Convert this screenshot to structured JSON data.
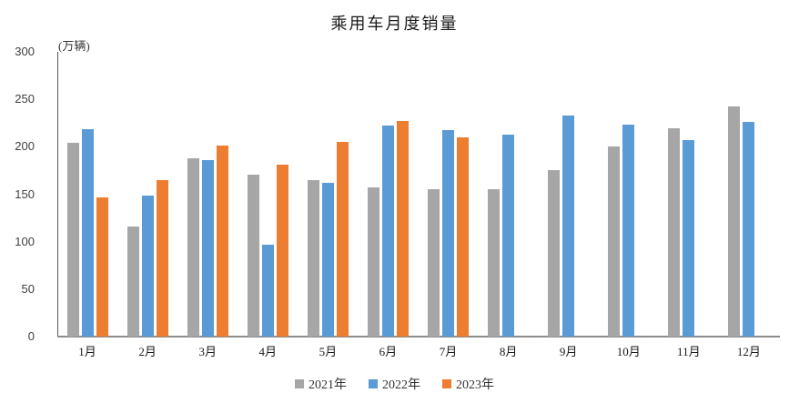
{
  "title": "乘用车月度销量",
  "unit_label": "(万辆)",
  "colors": {
    "series_2021": "#A6A6A6",
    "series_2022": "#5B9BD5",
    "series_2023": "#ED7D31",
    "axis_line": "#595959",
    "baseline": "#8C8C8C",
    "text": "#404040",
    "background": "#FFFFFF"
  },
  "chart_data": {
    "type": "bar",
    "title": "乘用车月度销量",
    "unit": "(万辆)",
    "xlabel": "",
    "ylabel": "万辆",
    "categories": [
      "1月",
      "2月",
      "3月",
      "4月",
      "5月",
      "6月",
      "7月",
      "8月",
      "9月",
      "10月",
      "11月",
      "12月"
    ],
    "series": [
      {
        "name": "2021年",
        "color": "#A6A6A6",
        "values": [
          204.5,
          115.6,
          187.4,
          170.4,
          164.6,
          156.9,
          155.1,
          155.2,
          175.1,
          200.7,
          219.2,
          242.2
        ]
      },
      {
        "name": "2022年",
        "color": "#5B9BD5",
        "values": [
          218.6,
          148.7,
          186.4,
          96.5,
          162.3,
          222.2,
          217.4,
          212.5,
          233.2,
          223.1,
          207.5,
          226.3
        ]
      },
      {
        "name": "2023年",
        "color": "#ED7D31",
        "values": [
          146.9,
          165.3,
          201.7,
          181.1,
          205.2,
          226.8,
          210.0,
          null,
          null,
          null,
          null,
          null
        ]
      }
    ],
    "ylim": [
      0,
      300
    ],
    "ytick_step": 50,
    "yticks": [
      0,
      50,
      100,
      150,
      200,
      250,
      300
    ],
    "grid": false,
    "legend_position": "bottom"
  }
}
